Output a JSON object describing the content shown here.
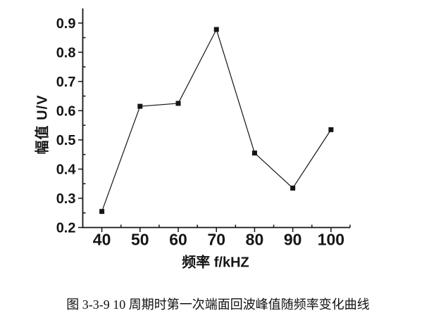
{
  "figure_caption": "图 3-3-9 10 周期时第一次端面回波峰值随频率变化曲线",
  "chart_data": {
    "type": "line",
    "title": "",
    "xlabel": "频率  f/kHZ",
    "ylabel": "幅值  U/V",
    "x": [
      40,
      50,
      60,
      70,
      80,
      90,
      100
    ],
    "y": [
      0.255,
      0.615,
      0.625,
      0.878,
      0.455,
      0.335,
      0.535
    ],
    "xlim": [
      35,
      105
    ],
    "ylim": [
      0.2,
      0.95
    ],
    "x_major_ticks": [
      40,
      50,
      60,
      70,
      80,
      90,
      100
    ],
    "x_tick_labels": [
      "40",
      "50",
      "60",
      "70",
      "80",
      "90",
      "100"
    ],
    "x_minor_ticks": [
      45,
      55,
      65,
      75,
      85,
      95,
      105
    ],
    "y_major_ticks": [
      0.2,
      0.3,
      0.4,
      0.5,
      0.6,
      0.7,
      0.8,
      0.9
    ],
    "y_tick_labels": [
      "0.2",
      "0.3",
      "0.4",
      "0.5",
      "0.6",
      "0.7",
      "0.8",
      "0.9"
    ],
    "y_minor_ticks": [
      0.25,
      0.35,
      0.45,
      0.55,
      0.65,
      0.75,
      0.85
    ],
    "grid": false,
    "legend": "none",
    "line_color": "#151515",
    "marker": "filled-square",
    "marker_color": "#151515",
    "marker_size": 7,
    "axis_color": "#151515",
    "background": "#ffffff"
  }
}
